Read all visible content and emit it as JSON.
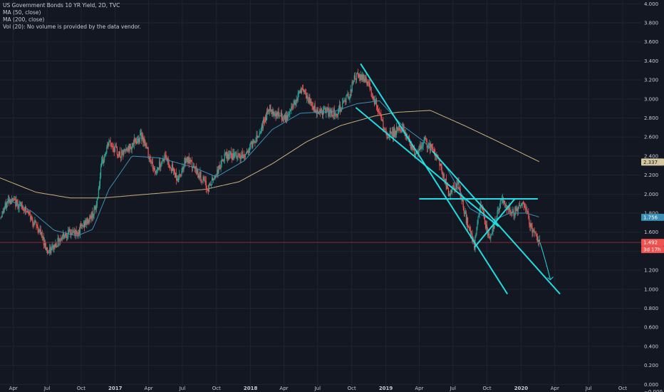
{
  "legend": {
    "title": "US Government Bonds 10 YR Yield, 2D, TVC",
    "ma50": "MA (50, close)",
    "ma200": "MA (200, close)",
    "vol": "Vol (20): No volume is provided by the data vendor."
  },
  "colors": {
    "background": "#131722",
    "grid": "#1f2430",
    "up": "#26a69a",
    "down": "#ef5350",
    "ma50": "#3b8fb5",
    "ma200": "#c8b07a",
    "annotation": "#1fdde0",
    "price_line": "#8a2a33"
  },
  "price_tags": {
    "ma200": "2.337",
    "ma50": "1.756",
    "last": "1.492",
    "countdown": "3d 17h"
  },
  "chart_data": {
    "type": "candlestick",
    "title": "US Government Bonds 10 YR Yield, 2D, TVC",
    "x_ticks": [
      "Apr",
      "Jul",
      "Oct",
      "2017",
      "Apr",
      "Jul",
      "Oct",
      "2018",
      "Apr",
      "Jul",
      "Oct",
      "2019",
      "Apr",
      "Jul",
      "Oct",
      "2020",
      "Apr",
      "Jul",
      "Oct"
    ],
    "y_ticks": [
      "4.000",
      "3.800",
      "3.600",
      "3.400",
      "3.200",
      "3.000",
      "2.800",
      "2.600",
      "2.400",
      "2.200",
      "2.000",
      "1.800",
      "1.600",
      "1.400",
      "1.200",
      "1.000",
      "0.800",
      "0.600",
      "0.400",
      "0.200",
      "0.000",
      "−0.000"
    ],
    "ylim": [
      -0.02,
      4.04
    ],
    "xlim": [
      "2016-02-25",
      "2020-11-20"
    ],
    "series": [
      {
        "name": "MA (50, close)",
        "x": [
          "2016-03-15",
          "2016-05-20",
          "2016-07-20",
          "2016-09-20",
          "2016-11-01",
          "2016-12-15",
          "2017-02-15",
          "2017-05-01",
          "2017-08-01",
          "2017-10-01",
          "2017-12-15",
          "2018-03-01",
          "2018-05-15",
          "2018-08-15",
          "2018-10-15",
          "2018-12-15",
          "2019-02-15",
          "2019-04-15",
          "2019-06-15",
          "2019-08-15",
          "2019-10-15",
          "2019-12-01",
          "2020-01-15",
          "2020-02-21"
        ],
        "values": [
          1.95,
          1.82,
          1.62,
          1.56,
          1.63,
          2.05,
          2.4,
          2.38,
          2.28,
          2.18,
          2.35,
          2.68,
          2.85,
          2.87,
          2.95,
          2.98,
          2.72,
          2.55,
          2.27,
          1.85,
          1.72,
          1.8,
          1.8,
          1.756
        ]
      },
      {
        "name": "MA (200, close)",
        "x": [
          "2016-02-25",
          "2016-06-01",
          "2016-09-01",
          "2016-12-01",
          "2017-03-01",
          "2017-06-01",
          "2017-09-01",
          "2017-12-01",
          "2018-03-01",
          "2018-06-01",
          "2018-09-01",
          "2018-12-01",
          "2019-02-01",
          "2019-05-01",
          "2019-08-01",
          "2019-11-01",
          "2020-02-21"
        ],
        "values": [
          2.17,
          2.02,
          1.96,
          1.96,
          1.99,
          2.02,
          2.05,
          2.13,
          2.32,
          2.55,
          2.72,
          2.82,
          2.86,
          2.88,
          2.72,
          2.55,
          2.337
        ]
      }
    ],
    "last_value": 1.492,
    "trendlines": [
      {
        "from": [
          "2018-10-25",
          3.37
        ],
        "to": [
          "2019-11-25",
          0.95
        ]
      },
      {
        "from": [
          "2018-10-12",
          2.91
        ],
        "to": [
          "2019-11-01",
          1.66
        ]
      },
      {
        "from": [
          "2019-05-07",
          2.45
        ],
        "to": [
          "2020-04-15",
          0.95
        ]
      },
      {
        "from": [
          "2019-08-28",
          1.44
        ],
        "to": [
          "2019-12-15",
          1.95
        ]
      },
      {
        "from": [
          "2019-04-01",
          1.95
        ],
        "to": [
          "2020-02-15",
          1.95
        ]
      }
    ],
    "projection": [
      [
        "2020-02-21",
        1.49
      ],
      [
        "2020-03-20",
        1.1
      ]
    ]
  }
}
